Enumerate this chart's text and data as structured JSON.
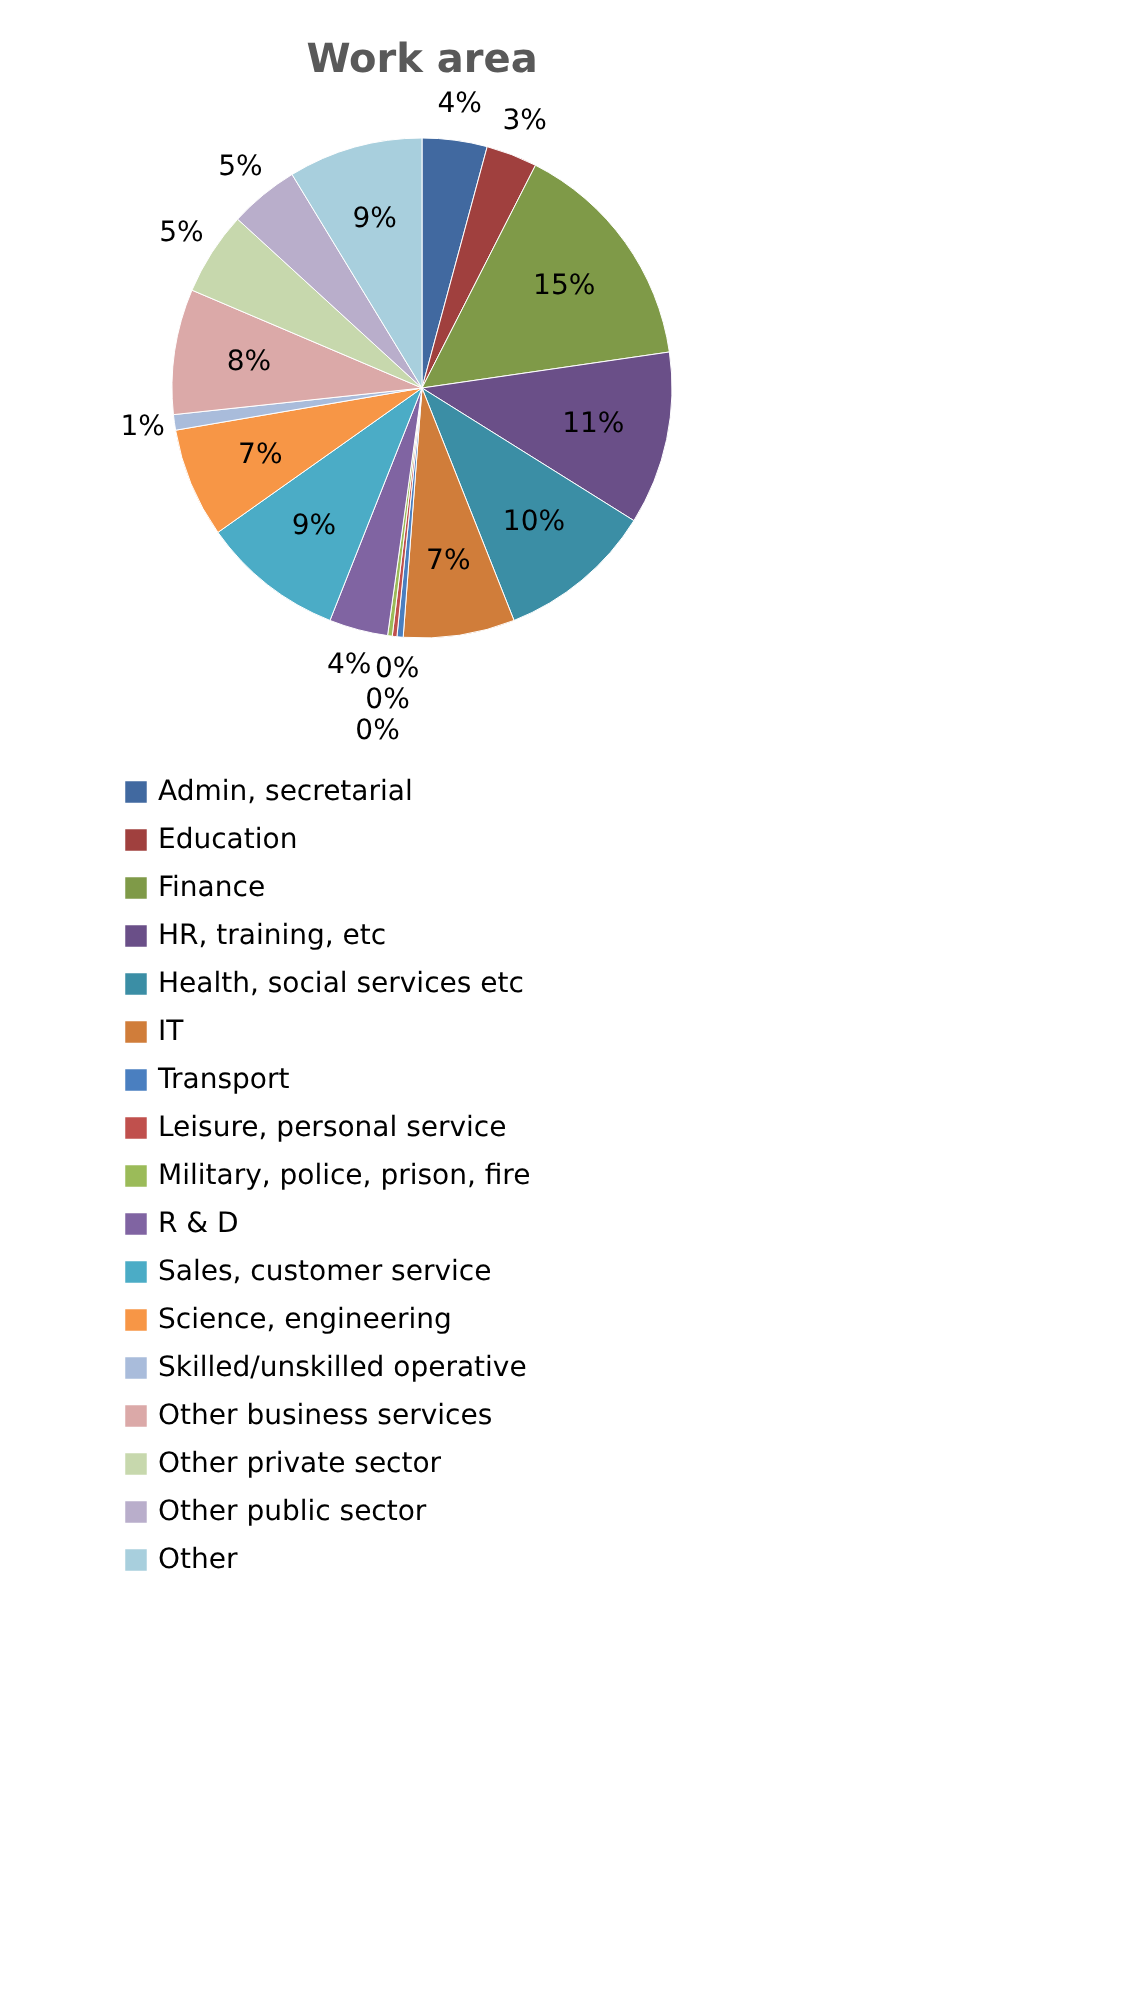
{
  "chart_data": {
    "type": "pie",
    "title": "Work area",
    "categories": [
      "Admin, secretarial",
      "Education",
      "Finance",
      "HR, training, etc",
      "Health, social services etc",
      "IT",
      "Transport",
      "Leisure, personal service",
      "Military, police, prison, fire",
      "R & D",
      "Sales, customer service",
      "Science, engineering",
      "Skilled/unskilled operative",
      "Other business services",
      "Other private sector",
      "Other public sector",
      "Other"
    ],
    "values": [
      4.2,
      3.3,
      15.2,
      11.2,
      10.1,
      7.2,
      0.4,
      0.3,
      0.3,
      3.8,
      9.2,
      7.1,
      1.0,
      8.1,
      5.4,
      4.5,
      8.7
    ],
    "value_labels": [
      "4%",
      "3%",
      "15%",
      "11%",
      "10%",
      "7%",
      "0%",
      "0%",
      "0%",
      "4%",
      "9%",
      "7%",
      "1%",
      "8%",
      "5%",
      "5%",
      "9%"
    ],
    "colors": [
      "#4169a0",
      "#a0403e",
      "#7f9a48",
      "#6a4f88",
      "#3b8ea5",
      "#d07d3a",
      "#4a7fc0",
      "#c0504d",
      "#9bbb59",
      "#8064a2",
      "#4bacc6",
      "#f79646",
      "#a9bcdb",
      "#dba9a8",
      "#c7d8ad",
      "#b9aecb",
      "#a8cfdd"
    ],
    "legend": "bottom"
  }
}
